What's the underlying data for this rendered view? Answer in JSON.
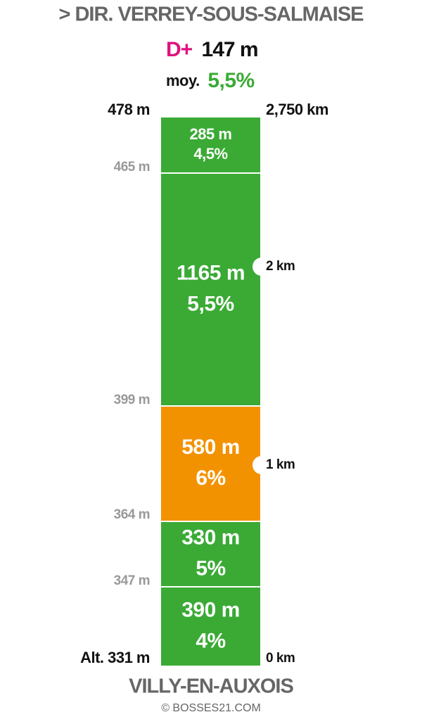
{
  "header": {
    "title": "> DIR. VERREY-SOUS-SALMAISE",
    "gain_label": "D+",
    "gain": "147 m",
    "avg_label": "moy.",
    "avg": "5,5%"
  },
  "segments": [
    {
      "length": "285 m",
      "slope": "4,5%",
      "color": "#3aaa35"
    },
    {
      "length": "1165 m",
      "slope": "5,5%",
      "color": "#3aaa35"
    },
    {
      "length": "580 m",
      "slope": "6%",
      "color": "#f39200"
    },
    {
      "length": "330 m",
      "slope": "5%",
      "color": "#3aaa35"
    },
    {
      "length": "390 m",
      "slope": "4%",
      "color": "#3aaa35"
    }
  ],
  "altitudes": [
    "478 m",
    "465 m",
    "399 m",
    "364 m",
    "347 m",
    "Alt. 331 m"
  ],
  "distances": [
    "2,750 km",
    "2 km",
    "1 km",
    "0 km"
  ],
  "footer": {
    "place": "VILLY-EN-AUXOIS",
    "credit": "© BOSSES21.COM"
  }
}
